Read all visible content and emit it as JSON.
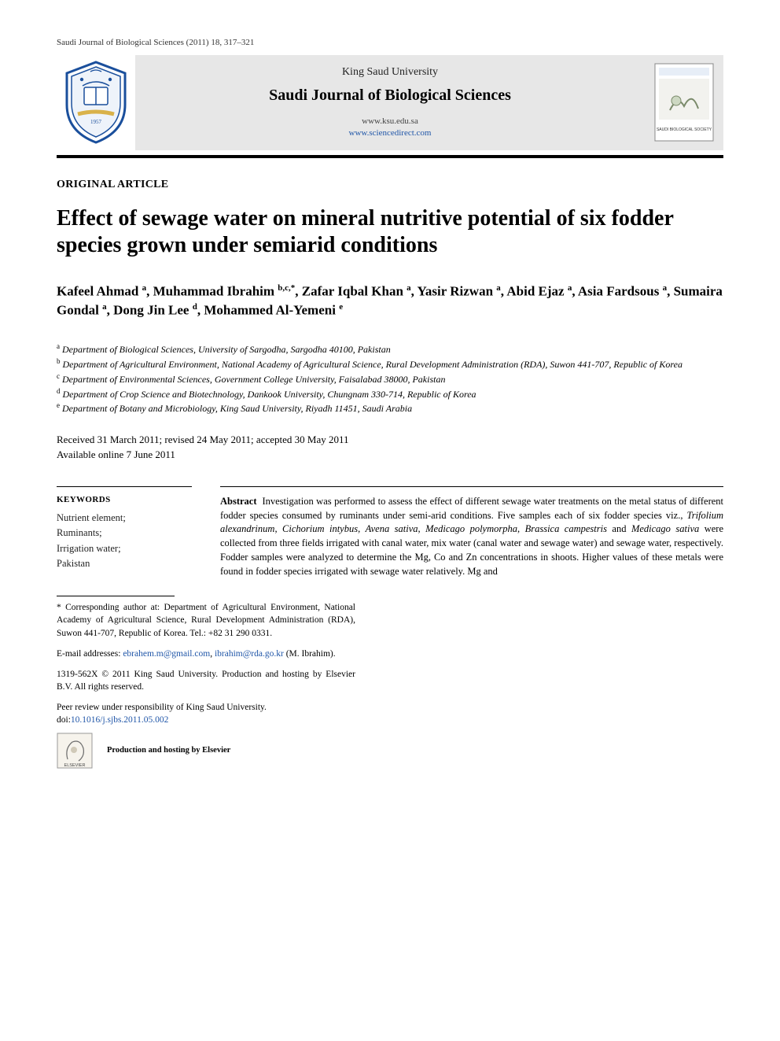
{
  "journal_ref": "Saudi Journal of Biological Sciences (2011) 18, 317–321",
  "header": {
    "university": "King Saud University",
    "journal": "Saudi Journal of Biological Sciences",
    "url1": "www.ksu.edu.sa",
    "url2": "www.sciencedirect.com",
    "cover_caption": "SAUDI BIOLOGICAL SOCIETY"
  },
  "article_type": "ORIGINAL ARTICLE",
  "title": "Effect of sewage water on mineral nutritive potential of six fodder species grown under semiarid conditions",
  "authors_html": "Kafeel Ahmad <sup>a</sup>, Muhammad Ibrahim <sup>b,c,*</sup>, Zafar Iqbal Khan <sup>a</sup>, Yasir Rizwan <sup>a</sup>, Abid Ejaz <sup>a</sup>, Asia Fardsous <sup>a</sup>, Sumaira Gondal <sup>a</sup>, Dong Jin Lee <sup>d</sup>, Mohammed Al-Yemeni <sup>e</sup>",
  "affiliations": [
    {
      "sup": "a",
      "text": "Department of Biological Sciences, University of Sargodha, Sargodha 40100, Pakistan"
    },
    {
      "sup": "b",
      "text": "Department of Agricultural Environment, National Academy of Agricultural Science, Rural Development Administration (RDA), Suwon 441-707, Republic of Korea"
    },
    {
      "sup": "c",
      "text": "Department of Environmental Sciences, Government College University, Faisalabad 38000, Pakistan"
    },
    {
      "sup": "d",
      "text": "Department of Crop Science and Biotechnology, Dankook University, Chungnam 330-714, Republic of Korea"
    },
    {
      "sup": "e",
      "text": "Department of Botany and Microbiology, King Saud University, Riyadh 11451, Saudi Arabia"
    }
  ],
  "dates": {
    "line1": "Received 31 March 2011; revised 24 May 2011; accepted 30 May 2011",
    "line2": "Available online 7 June 2011"
  },
  "keywords": {
    "head": "KEYWORDS",
    "items": [
      "Nutrient element;",
      "Ruminants;",
      "Irrigation water;",
      "Pakistan"
    ]
  },
  "abstract": {
    "lead": "Abstract",
    "body_html": "Investigation was performed to assess the effect of different sewage water treatments on the metal status of different fodder species consumed by ruminants under semi-arid conditions. Five samples each of six fodder species viz., <span class=\"ital\">Trifolium alexandrinum</span>, <span class=\"ital\">Cichorium intybus</span>, <span class=\"ital\">Avena sativa</span>, <span class=\"ital\">Medicago polymorpha</span>, <span class=\"ital\">Brassica campestris</span> and <span class=\"ital\">Medicago sativa</span> were collected from three fields irrigated with canal water, mix water (canal water and sewage water) and sewage water, respectively. Fodder samples were analyzed to determine the Mg, Co and Zn concentrations in shoots. Higher values of these metals were found in fodder species irrigated with sewage water relatively. Mg and"
  },
  "footnotes": {
    "corresponding": "* Corresponding author at: Department of Agricultural Environment, National Academy of Agricultural Science, Rural Development Administration (RDA), Suwon 441-707, Republic of Korea. Tel.: +82 31 290 0331.",
    "emails_label": "E-mail addresses:",
    "email1": "ebrahem.m@gmail.com",
    "email2": "ibrahim@rda.go.kr",
    "emails_tail": "(M. Ibrahim).",
    "copyright": "1319-562X © 2011 King Saud University. Production and hosting by Elsevier B.V. All rights reserved.",
    "peer": "Peer review under responsibility of King Saud University.",
    "doi_label": "doi:",
    "doi": "10.1016/j.sjbs.2011.05.002",
    "hosting": "Production and hosting by Elsevier"
  },
  "colors": {
    "link": "#2056a8",
    "header_bg": "#e7e7e7",
    "rule": "#000000",
    "crest_blue": "#1a4f9c",
    "crest_gold": "#d9b24a"
  }
}
